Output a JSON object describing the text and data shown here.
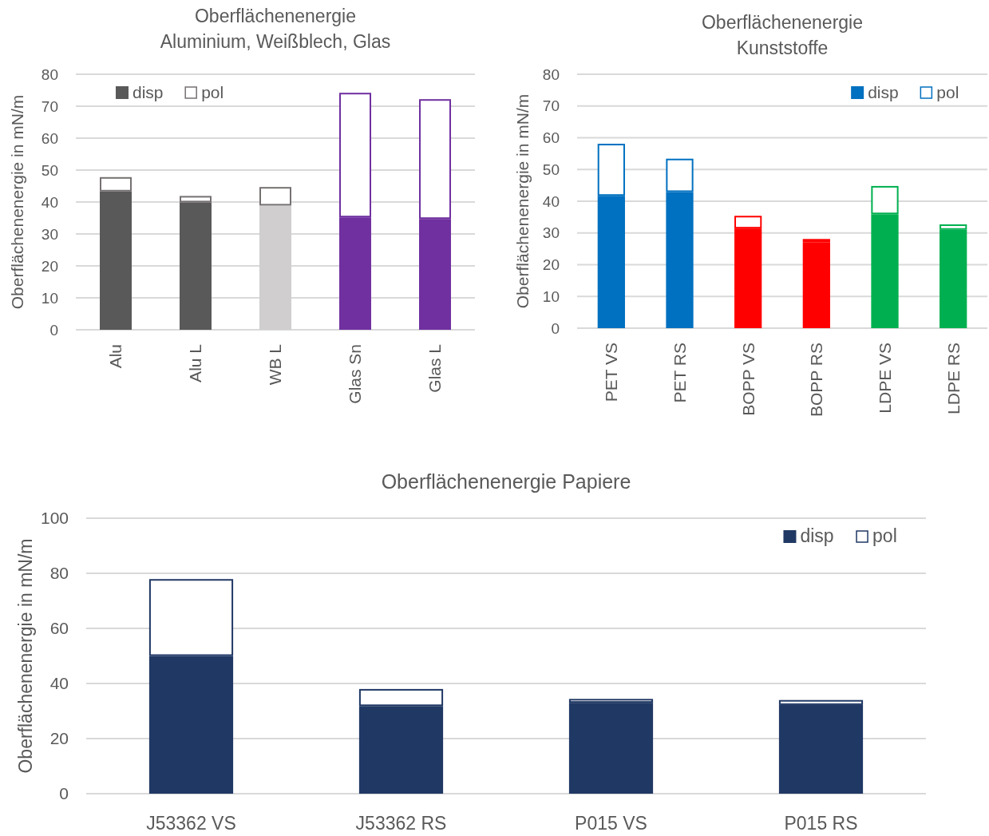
{
  "chart_data": [
    {
      "type": "bar",
      "title": "Oberflächenenergie\nAluminium, Weißblech, Glas",
      "ylabel": "Oberflächenenergie in mN/m",
      "categories": [
        "Alu",
        "Alu L",
        "WB L",
        "Glas Sn",
        "Glas L"
      ],
      "stacked": true,
      "ylim": [
        0,
        80
      ],
      "yticks": [
        0,
        10,
        20,
        30,
        40,
        50,
        60,
        70,
        80
      ],
      "grid": "y",
      "legend": "top left",
      "series": [
        {
          "name": "disp",
          "color": "#595959",
          "colors": [
            "#595959",
            "#595959",
            "#d0cece",
            "#7030a0",
            "#7030a0"
          ],
          "values": [
            43.3,
            39.9,
            38.9,
            35.2,
            34.7
          ]
        },
        {
          "name": "pol",
          "color": "#767171",
          "colors": [
            "#767171",
            "#767171",
            "#767171",
            "#7030a0",
            "#7030a0"
          ],
          "values": [
            4.5,
            2.0,
            5.8,
            39.0,
            37.5
          ]
        }
      ]
    },
    {
      "type": "bar",
      "title": "Oberflächenenergie\nKunststoffe",
      "ylabel": "Oberflächenenergie in mN/m",
      "categories": [
        "PET VS",
        "PET RS",
        "BOPP VS",
        "BOPP RS",
        "LDPE VS",
        "LDPE RS"
      ],
      "stacked": true,
      "ylim": [
        0,
        80
      ],
      "yticks": [
        0,
        10,
        20,
        30,
        40,
        50,
        60,
        70,
        80
      ],
      "grid": "y",
      "legend": "top right",
      "series": [
        {
          "name": "disp",
          "color": "#0070c0",
          "colors": [
            "#0070c0",
            "#0070c0",
            "#ff0000",
            "#ff0000",
            "#00b050",
            "#00b050"
          ],
          "values": [
            41.7,
            42.9,
            31.4,
            27.1,
            35.9,
            31.0
          ]
        },
        {
          "name": "pol",
          "color": "#0070c0",
          "colors": [
            "#0070c0",
            "#0070c0",
            "#ff0000",
            "#ff0000",
            "#00b050",
            "#00b050"
          ],
          "values": [
            16.4,
            10.5,
            4.0,
            1.0,
            8.9,
            1.7
          ]
        }
      ]
    },
    {
      "type": "bar",
      "title": "Oberflächenenergie Papiere",
      "ylabel": "Oberflächenenergie in mN/m",
      "categories": [
        "J53362 VS",
        "J53362 RS",
        "P015 VS",
        "P015 RS"
      ],
      "stacked": true,
      "ylim": [
        0,
        100
      ],
      "yticks": [
        0,
        20,
        40,
        60,
        80,
        100
      ],
      "grid": "y",
      "legend": "top right",
      "series": [
        {
          "name": "disp",
          "color": "#203864",
          "colors": [
            "#203864",
            "#203864",
            "#203864",
            "#203864"
          ],
          "values": [
            50.0,
            31.8,
            33.0,
            32.2
          ]
        },
        {
          "name": "pol",
          "color": "#203864",
          "colors": [
            "#203864",
            "#203864",
            "#203864",
            "#203864"
          ],
          "values": [
            27.9,
            6.2,
            1.4,
            1.8
          ]
        }
      ]
    }
  ]
}
